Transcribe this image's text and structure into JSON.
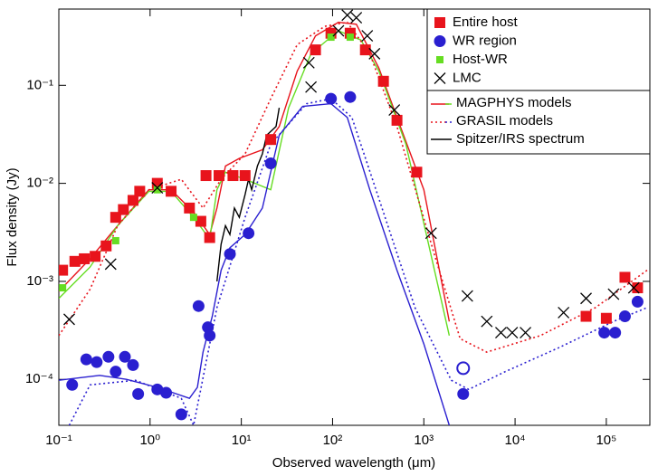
{
  "chart_data": {
    "type": "scatter",
    "xlabel": "Observed wavelength (μm)",
    "ylabel": "Flux density (Jy)",
    "log_x": true,
    "log_y": true,
    "xlim": [
      0.1,
      300000
    ],
    "ylim": [
      3.4e-05,
      0.6
    ],
    "xticks": [
      {
        "value": 0.1,
        "label": "10⁻¹"
      },
      {
        "value": 1,
        "label": "10⁰"
      },
      {
        "value": 10,
        "label": "10¹"
      },
      {
        "value": 100,
        "label": "10²"
      },
      {
        "value": 1000,
        "label": "10³"
      },
      {
        "value": 10000,
        "label": "10⁴"
      },
      {
        "value": 100000,
        "label": "10⁵"
      }
    ],
    "yticks": [
      {
        "value": 0.0001,
        "label": "10⁻⁴"
      },
      {
        "value": 0.001,
        "label": "10⁻³"
      },
      {
        "value": 0.01,
        "label": "10⁻²"
      },
      {
        "value": 0.1,
        "label": "10⁻¹"
      }
    ],
    "legend": "upper right",
    "series": [
      {
        "name": "Entire host",
        "color": "#e8141c",
        "marker": "square",
        "x": [
          0.11,
          0.15,
          0.19,
          0.25,
          0.33,
          0.42,
          0.51,
          0.65,
          0.77,
          1.2,
          1.7,
          2.7,
          3.6,
          4.5,
          4.1,
          5.7,
          8.1,
          11,
          21,
          65,
          96,
          156,
          229,
          361,
          508,
          837,
          60000,
          100000,
          160000,
          220000
        ],
        "y": [
          0.0013,
          0.0016,
          0.0017,
          0.0018,
          0.0023,
          0.0045,
          0.0054,
          0.0067,
          0.0083,
          0.01,
          0.0083,
          0.0056,
          0.0041,
          0.0028,
          0.012,
          0.012,
          0.012,
          0.012,
          0.028,
          0.23,
          0.34,
          0.34,
          0.23,
          0.11,
          0.044,
          0.013,
          0.00044,
          0.00042,
          0.0011,
          0.00086
        ]
      },
      {
        "name": "WR region",
        "color": "#2a1fd0",
        "marker": "circle",
        "x": [
          0.14,
          0.2,
          0.26,
          0.35,
          0.42,
          0.53,
          0.65,
          0.74,
          1.2,
          1.5,
          2.2,
          3.4,
          4.3,
          4.5,
          7.5,
          12,
          21,
          96,
          156,
          2700,
          95000,
          125000,
          160000,
          220000
        ],
        "y": [
          8.8e-05,
          0.00016,
          0.00015,
          0.00017,
          0.00012,
          0.00017,
          0.00014,
          7.1e-05,
          7.9e-05,
          7.3e-05,
          4.4e-05,
          0.00056,
          0.00034,
          0.00028,
          0.0019,
          0.0031,
          0.016,
          0.073,
          0.076,
          7.1e-05,
          0.0003,
          0.0003,
          0.00044,
          0.00062
        ],
        "open_x": [
          2700
        ],
        "open_y": [
          0.00013
        ]
      },
      {
        "name": "Host-WR",
        "color": "#66dd22",
        "marker": "small-square",
        "x": [
          0.11,
          0.42,
          1.2,
          3.0,
          96,
          156
        ],
        "y": [
          0.00086,
          0.0026,
          0.0086,
          0.0045,
          0.31,
          0.31
        ]
      },
      {
        "name": "LMC",
        "color": "#000000",
        "marker": "cross",
        "x": [
          0.13,
          0.37,
          1.2,
          55,
          58,
          116,
          145,
          182,
          240,
          288,
          475,
          1200,
          3000,
          4900,
          7000,
          9300,
          13000,
          34000,
          60000,
          120000,
          200000
        ],
        "y": [
          0.00041,
          0.0015,
          0.009,
          0.17,
          0.096,
          0.36,
          0.52,
          0.49,
          0.32,
          0.21,
          0.056,
          0.0031,
          0.00071,
          0.00039,
          0.0003,
          0.0003,
          0.0003,
          0.00048,
          0.00067,
          0.00074,
          0.00086
        ]
      }
    ],
    "models": [
      {
        "name": "MAGPHYS models",
        "dash": "solid",
        "curves": [
          {
            "color": "#e8141c",
            "x": [
              0.1,
              0.22,
              0.44,
              0.97,
              1.7,
              3.0,
              4.5,
              5.4,
              6.7,
              9.5,
              17,
              26,
              41,
              65,
              116,
              182,
              322,
              508,
              1000,
              1900
            ],
            "y": [
              0.00079,
              0.0017,
              0.0037,
              0.0086,
              0.0086,
              0.0051,
              0.003,
              0.0056,
              0.015,
              0.018,
              0.022,
              0.038,
              0.14,
              0.32,
              0.44,
              0.42,
              0.15,
              0.047,
              0.0086,
              0.00039
            ]
          },
          {
            "color": "#66dd22",
            "x": [
              0.1,
              0.22,
              0.44,
              0.97,
              1.7,
              3.0,
              4.5,
              5.4,
              6.7,
              11,
              21,
              33,
              58,
              116,
              204,
              322,
              637,
              1900
            ],
            "y": [
              0.00067,
              0.0014,
              0.0037,
              0.0083,
              0.0083,
              0.0045,
              0.0027,
              0.0086,
              0.013,
              0.011,
              0.0086,
              0.059,
              0.21,
              0.36,
              0.29,
              0.14,
              0.025,
              0.00028
            ]
          },
          {
            "color": "#2a1fd0",
            "x": [
              0.1,
              0.28,
              0.55,
              1.2,
              2.7,
              3.3,
              3.8,
              4.8,
              6.0,
              7.5,
              11,
              17,
              26,
              47,
              96,
              145,
              256,
              508,
              1000,
              1900
            ],
            "y": [
              9.8e-05,
              0.00011,
              0.0001,
              8.3e-05,
              6.4e-05,
              8.3e-05,
              0.00019,
              0.00044,
              0.0013,
              0.0022,
              0.003,
              0.0056,
              0.031,
              0.061,
              0.065,
              0.047,
              0.0086,
              0.0013,
              0.00023,
              3.4e-05
            ]
          }
        ]
      },
      {
        "name": "GRASIL models",
        "dash": "dotted",
        "curves": [
          {
            "color": "#e8141c",
            "x": [
              0.1,
              0.22,
              0.44,
              0.97,
              2.2,
              3.8,
              6.0,
              11,
              21,
              41,
              82,
              145,
              256,
              508,
              1300,
              2500,
              4900,
              19000,
              76000,
              280000
            ],
            "y": [
              0.00028,
              0.00083,
              0.0037,
              0.0086,
              0.011,
              0.0056,
              0.011,
              0.02,
              0.073,
              0.26,
              0.4,
              0.44,
              0.21,
              0.038,
              0.0019,
              0.00026,
              0.00019,
              0.00028,
              0.00054,
              0.0013
            ]
          },
          {
            "color": "#2a1fd0",
            "x": [
              0.13,
              0.22,
              0.69,
              2.2,
              3.0,
              5.4,
              11,
              21,
              52,
              96,
              163,
              322,
              800,
              2000,
              3100,
              7800,
              30000,
              120000,
              280000
            ],
            "y": [
              3.4e-05,
              8.8e-05,
              9.8e-05,
              6.4e-05,
              3.4e-05,
              0.00054,
              0.0045,
              0.025,
              0.065,
              0.073,
              0.047,
              0.007,
              0.00054,
              9.8e-05,
              7.9e-05,
              0.00012,
              0.00021,
              0.00039,
              0.00054
            ]
          }
        ]
      },
      {
        "name": "Spitzer/IRS spectrum",
        "dash": "solid",
        "curves": [
          {
            "color": "#000000",
            "x": [
              5.4,
              6.0,
              6.7,
              7.5,
              8.4,
              9.5,
              11,
              12,
              13,
              15,
              17,
              19,
              24,
              26
            ],
            "y": [
              0.001,
              0.0024,
              0.0037,
              0.003,
              0.0056,
              0.0045,
              0.0077,
              0.011,
              0.0086,
              0.015,
              0.02,
              0.031,
              0.038,
              0.059
            ]
          }
        ]
      }
    ]
  }
}
